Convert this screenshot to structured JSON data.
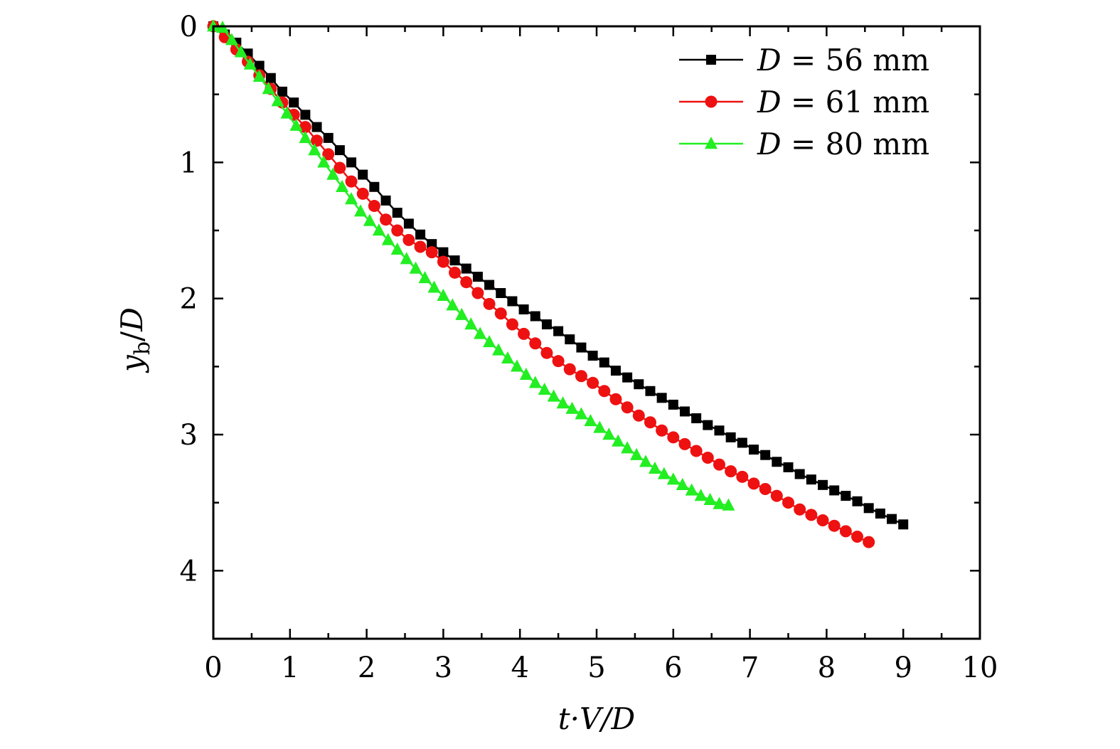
{
  "chart_data": {
    "type": "line",
    "title": "",
    "xlabel": "t·V/D",
    "ylabel": "y_b/D",
    "xlim": [
      0,
      10
    ],
    "ylim": [
      0,
      4.5
    ],
    "y_inverted": true,
    "x_ticks": [
      "0",
      "1",
      "2",
      "3",
      "4",
      "5",
      "6",
      "7",
      "8",
      "9",
      "10"
    ],
    "y_ticks": [
      "0",
      "1",
      "2",
      "3",
      "4"
    ],
    "legend_position": "top-right",
    "series": [
      {
        "name": "D = 56 mm",
        "legend": {
          "var": "D",
          "eq": " = 56 mm"
        },
        "color": "#000000",
        "marker": "square",
        "x": [
          0.0,
          0.15,
          0.3,
          0.45,
          0.6,
          0.75,
          0.9,
          1.05,
          1.2,
          1.35,
          1.5,
          1.65,
          1.8,
          1.95,
          2.1,
          2.25,
          2.4,
          2.55,
          2.7,
          2.85,
          3.0,
          3.15,
          3.3,
          3.45,
          3.6,
          3.75,
          3.9,
          4.05,
          4.2,
          4.35,
          4.5,
          4.65,
          4.8,
          4.95,
          5.1,
          5.25,
          5.4,
          5.55,
          5.7,
          5.85,
          6.0,
          6.15,
          6.3,
          6.45,
          6.6,
          6.75,
          6.9,
          7.05,
          7.2,
          7.35,
          7.5,
          7.65,
          7.8,
          7.95,
          8.1,
          8.25,
          8.4,
          8.55,
          8.7,
          8.85,
          9.0
        ],
        "y": [
          0.0,
          0.06,
          0.12,
          0.2,
          0.29,
          0.38,
          0.48,
          0.56,
          0.65,
          0.74,
          0.82,
          0.91,
          1.0,
          1.09,
          1.18,
          1.28,
          1.37,
          1.45,
          1.53,
          1.6,
          1.66,
          1.72,
          1.78,
          1.84,
          1.9,
          1.96,
          2.02,
          2.08,
          2.13,
          2.19,
          2.24,
          2.3,
          2.36,
          2.42,
          2.47,
          2.53,
          2.58,
          2.63,
          2.68,
          2.73,
          2.78,
          2.83,
          2.88,
          2.93,
          2.97,
          3.02,
          3.06,
          3.11,
          3.15,
          3.2,
          3.24,
          3.29,
          3.33,
          3.37,
          3.41,
          3.45,
          3.49,
          3.54,
          3.58,
          3.62,
          3.66
        ]
      },
      {
        "name": "D = 61 mm",
        "legend": {
          "var": "D",
          "eq": " = 61 mm"
        },
        "color": "#ee1111",
        "marker": "circle",
        "x": [
          0.0,
          0.15,
          0.3,
          0.45,
          0.6,
          0.75,
          0.9,
          1.05,
          1.2,
          1.35,
          1.5,
          1.65,
          1.8,
          1.95,
          2.1,
          2.25,
          2.4,
          2.55,
          2.7,
          2.85,
          3.0,
          3.15,
          3.3,
          3.45,
          3.6,
          3.75,
          3.9,
          4.05,
          4.2,
          4.35,
          4.5,
          4.65,
          4.8,
          4.95,
          5.1,
          5.25,
          5.4,
          5.55,
          5.7,
          5.85,
          6.0,
          6.15,
          6.3,
          6.45,
          6.6,
          6.75,
          6.9,
          7.05,
          7.2,
          7.35,
          7.5,
          7.65,
          7.8,
          7.95,
          8.1,
          8.25,
          8.4,
          8.55
        ],
        "y": [
          0.0,
          0.08,
          0.17,
          0.26,
          0.36,
          0.46,
          0.56,
          0.65,
          0.74,
          0.84,
          0.94,
          1.04,
          1.14,
          1.23,
          1.32,
          1.42,
          1.5,
          1.57,
          1.62,
          1.66,
          1.73,
          1.81,
          1.88,
          1.96,
          2.04,
          2.11,
          2.19,
          2.26,
          2.33,
          2.4,
          2.46,
          2.52,
          2.57,
          2.62,
          2.68,
          2.74,
          2.8,
          2.86,
          2.91,
          2.97,
          3.02,
          3.07,
          3.12,
          3.17,
          3.22,
          3.27,
          3.31,
          3.36,
          3.4,
          3.45,
          3.5,
          3.55,
          3.59,
          3.63,
          3.67,
          3.71,
          3.75,
          3.79
        ]
      },
      {
        "name": "D = 80 mm",
        "legend": {
          "var": "D",
          "eq": " = 80 mm"
        },
        "color": "#22ee22",
        "marker": "triangle",
        "x": [
          0.0,
          0.12,
          0.24,
          0.36,
          0.48,
          0.6,
          0.72,
          0.84,
          0.96,
          1.08,
          1.2,
          1.32,
          1.44,
          1.56,
          1.68,
          1.8,
          1.92,
          2.04,
          2.16,
          2.28,
          2.4,
          2.52,
          2.64,
          2.76,
          2.88,
          3.0,
          3.12,
          3.24,
          3.36,
          3.48,
          3.6,
          3.72,
          3.84,
          3.96,
          4.08,
          4.2,
          4.32,
          4.44,
          4.56,
          4.68,
          4.8,
          4.92,
          5.04,
          5.16,
          5.28,
          5.4,
          5.52,
          5.64,
          5.76,
          5.88,
          6.0,
          6.12,
          6.24,
          6.36,
          6.48,
          6.6,
          6.72
        ],
        "y": [
          0.0,
          0.01,
          0.1,
          0.19,
          0.28,
          0.37,
          0.46,
          0.55,
          0.64,
          0.73,
          0.82,
          0.91,
          1.0,
          1.09,
          1.18,
          1.27,
          1.36,
          1.43,
          1.5,
          1.57,
          1.64,
          1.71,
          1.78,
          1.85,
          1.92,
          1.98,
          2.05,
          2.12,
          2.19,
          2.26,
          2.32,
          2.38,
          2.44,
          2.5,
          2.56,
          2.62,
          2.67,
          2.72,
          2.77,
          2.81,
          2.85,
          2.9,
          2.95,
          3.0,
          3.05,
          3.1,
          3.15,
          3.2,
          3.25,
          3.29,
          3.33,
          3.37,
          3.41,
          3.45,
          3.48,
          3.51,
          3.52
        ]
      }
    ]
  }
}
